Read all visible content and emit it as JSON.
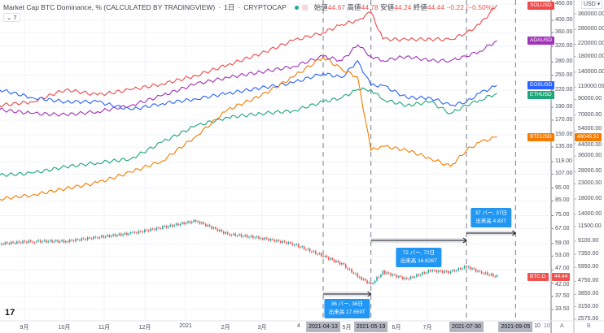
{
  "header": {
    "title": "Market Cap BTC Dominance, % (CALCULATED BY TRADINGVIEW)",
    "interval": "1日",
    "exchange": "CRYPTOCAP",
    "open_label": "始値",
    "open": "44.67",
    "high_label": "高値",
    "high": "44.78",
    "low_label": "安値",
    "low": "44.24",
    "close_label": "終値",
    "close": "44.44",
    "change": "−0.22 (−0.50%)",
    "collapse_label": "⌄ 7",
    "logo": "17"
  },
  "currency_menu": "USD ▾",
  "axis_buttons": {
    "a": "A",
    "b": "B",
    "ten": "10"
  },
  "colors": {
    "SOLUSD": "#ef4a4a",
    "ADAUSD": "#a033b8",
    "EOSUSD": "#2962ff",
    "ETHUSD": "#1ea67a",
    "BTCUSD": "#f57c00",
    "up": "#26a69a",
    "down": "#ef5350",
    "measure": "#2196f3"
  },
  "chart_data": {
    "type": "line",
    "yscale": "log",
    "grid": true,
    "x": [
      "2020-08-12",
      "2020-09-06",
      "2020-10-01",
      "2020-10-25",
      "2020-11-19",
      "2020-12-13",
      "2021-01-07",
      "2021-01-31",
      "2021-02-25",
      "2021-03-21",
      "2021-04-13",
      "2021-04-27",
      "2021-05-09",
      "2021-05-19",
      "2021-05-28",
      "2021-06-15",
      "2021-07-03",
      "2021-07-18",
      "2021-07-30",
      "2021-08-09",
      "2021-08-22"
    ],
    "series": [
      {
        "name": "SOLUSD",
        "axis": "A",
        "values": [
          193,
          199,
          221,
          211,
          221,
          232,
          249,
          273,
          301,
          336,
          360,
          386,
          400,
          429,
          341,
          339,
          341,
          339,
          360,
          386,
          456
        ]
      },
      {
        "name": "ADAUSD",
        "axis": "A",
        "values": [
          186,
          180,
          178,
          183,
          193,
          210,
          232,
          245,
          257,
          269,
          294,
          283,
          324,
          294,
          283,
          294,
          283,
          283,
          294,
          307,
          336
        ]
      },
      {
        "name": "EOSUSD",
        "axis": "A",
        "values": [
          221,
          206,
          199,
          199,
          186,
          196,
          204,
          214,
          224,
          234,
          254,
          245,
          283,
          229,
          229,
          206,
          206,
          193,
          199,
          214,
          229
        ]
      },
      {
        "name": "ETHUSD",
        "axis": "A",
        "values": [
          106,
          108,
          114,
          118,
          122,
          141,
          162,
          174,
          180,
          184,
          199,
          206,
          221,
          221,
          203,
          193,
          199,
          180,
          193,
          202,
          214
        ]
      },
      {
        "name": "BTCUSD",
        "axis": "B",
        "values": [
          18000,
          19200,
          21300,
          23400,
          27800,
          33400,
          49500,
          76300,
          95500,
          129000,
          179000,
          147000,
          129000,
          39600,
          42300,
          39600,
          34700,
          30500,
          39600,
          45100,
          49045.51
        ]
      },
      {
        "name": "BTC.D",
        "axis": "A",
        "values": [
          58.9,
          60.2,
          60.2,
          62.3,
          64.4,
          67.8,
          71.7,
          64.0,
          61.9,
          58.9,
          53.1,
          49.5,
          44.6,
          41.6,
          46.2,
          43.5,
          46.8,
          46.2,
          48.5,
          46.2,
          44.44
        ]
      }
    ],
    "axis_a_ticks": [
      "460.00",
      "400.00",
      "360.00",
      "320.00",
      "280.00",
      "250.00",
      "220.00",
      "190.00",
      "170.00",
      "150.00",
      "135.00",
      "119.00",
      "107.00",
      "95.00",
      "85.00",
      "75.00",
      "67.00",
      "59.00",
      "53.00",
      "47.00",
      "42.00",
      "37.50",
      "33.50"
    ],
    "axis_b_ticks": [
      "360000.00",
      "280000.00",
      "220000.00",
      "180000.00",
      "140000.00",
      "110000.00",
      "90000.00",
      "70000.00",
      "54000.00",
      "44000.00",
      "36000.00",
      "28000.00",
      "23000.00",
      "18000.00",
      "14000.00",
      "11500.00",
      "9100.00",
      "7350.00",
      "5950.00",
      "4750.00",
      "3850.00",
      "3150.00",
      "2575.00"
    ],
    "x_tick_labels": [
      "9月",
      "10月",
      "11月",
      "12月",
      "2021",
      "2月",
      "3月",
      "4",
      "5月",
      "6月",
      "7月",
      "10"
    ],
    "price_tags": {
      "BTCUSD": "49045.51",
      "BTC.D": "44.44"
    },
    "marked_dates": [
      "2021-04-13",
      "2021-05-19",
      "2021-07-30",
      "2021-09-05"
    ],
    "measurements": [
      {
        "line1": "36 バー, 36日",
        "line2": "出来高 17.659T"
      },
      {
        "line1": "72 バー, 72日",
        "line2": "出来高 16.626T"
      },
      {
        "line1": "37 バー, 37日",
        "line2": "出来高 4.83T"
      }
    ]
  }
}
